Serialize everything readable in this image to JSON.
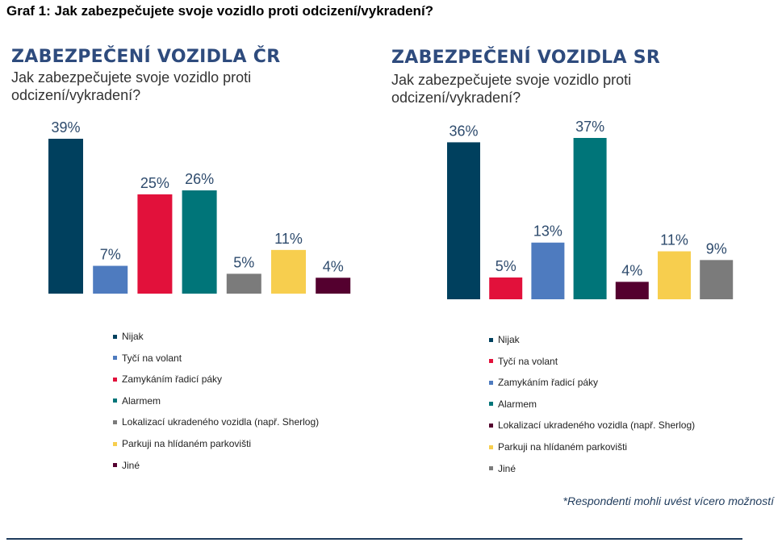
{
  "page": {
    "title": "Graf 1: Jak zabezpečujete svoje vozidlo proti odcizení/vykradení?"
  },
  "note": "*Respondenti mohli uvést vícero možností",
  "chart_data": [
    {
      "type": "bar",
      "title": "ZABEZPEČENÍ VOZIDLA ČR",
      "subtitle": "Jak zabezpečujete svoje vozidlo proti odcizení/vykradení?",
      "categories": [
        "Nijak",
        "Tyčí na volant",
        "Zamykáním řadicí páky",
        "Alarmem",
        "Lokalizací ukradeného vozidla (např. Sherlog)",
        "Parkuji na hlídaném parkovišti",
        "Jiné"
      ],
      "values": [
        39,
        7,
        25,
        26,
        5,
        11,
        4
      ],
      "labels": [
        "39%",
        "7%",
        "25%",
        "26%",
        "5%",
        "11%",
        "4%"
      ],
      "colors": [
        "#00405e",
        "#4e7bbf",
        "#e2113b",
        "#007579",
        "#7b7b7b",
        "#f7ce4e",
        "#54002f"
      ],
      "ylim": [
        0,
        39
      ],
      "grid": false,
      "legend": "bottom"
    },
    {
      "type": "bar",
      "title": "ZABEZPEČENÍ VOZIDLA SR",
      "subtitle": "Jak zabezpečujete svoje vozidlo proti odcizení/vykradení?",
      "categories": [
        "Nijak",
        "Tyčí na volant",
        "Zamykáním řadicí páky",
        "Alarmem",
        "Lokalizací ukradeného vozidla (např. Sherlog)",
        "Parkuji na hlídaném parkovišti",
        "Jiné"
      ],
      "values": [
        36,
        5,
        13,
        37,
        4,
        11,
        9
      ],
      "labels": [
        "36%",
        "5%",
        "13%",
        "37%",
        "4%",
        "11%",
        "9%"
      ],
      "colors": [
        "#00405e",
        "#e2113b",
        "#4e7bbf",
        "#007579",
        "#54002f",
        "#f7ce4e",
        "#7b7b7b"
      ],
      "ylim": [
        0,
        37
      ],
      "grid": false,
      "legend": "bottom"
    }
  ]
}
